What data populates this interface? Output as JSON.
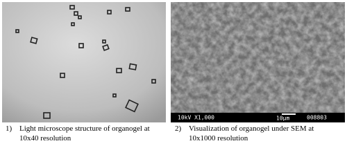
{
  "figures": [
    {
      "number": "1)",
      "caption": "Light microscope structure of organogel at 10x40 resolution"
    },
    {
      "number": "2)",
      "caption": "Visualization of organogel under SEM at 10x1000 resolution",
      "info_bar": {
        "voltage_magnification": "10kV X1,000",
        "scale": "10µm",
        "image_id": "008803"
      }
    }
  ]
}
